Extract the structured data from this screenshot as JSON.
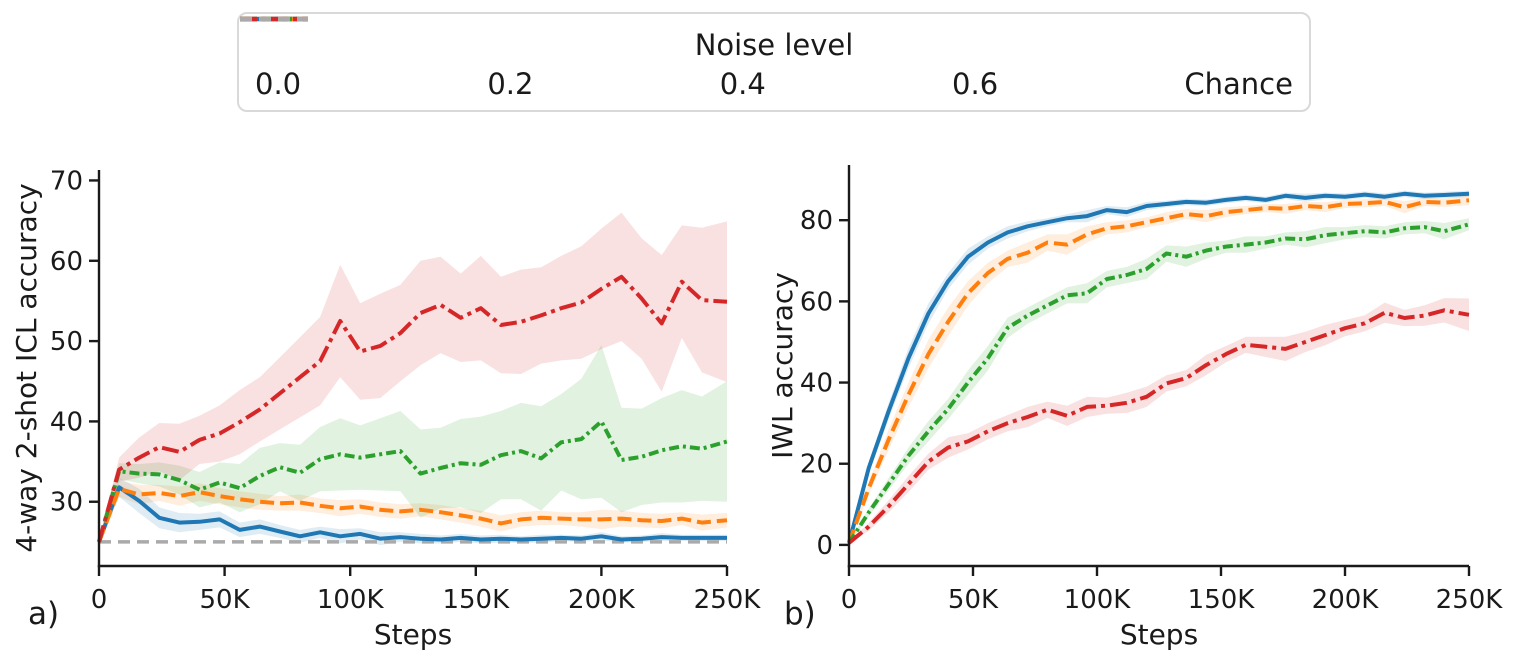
{
  "legend": {
    "title": "Noise level",
    "entries": [
      {
        "label": "0.0",
        "color": "#1f77b4",
        "linestyle": "solid"
      },
      {
        "label": "0.2",
        "color": "#ff7f0e",
        "linestyle": "dashed"
      },
      {
        "label": "0.4",
        "color": "#2ca02c",
        "linestyle": "dashdotdot"
      },
      {
        "label": "0.6",
        "color": "#d62728",
        "linestyle": "dashdot"
      },
      {
        "label": "Chance",
        "color": "#aaaaaa",
        "linestyle": "chancedash"
      }
    ]
  },
  "chart_data": [
    {
      "type": "line",
      "panel_label": "a)",
      "xlabel": "Steps",
      "ylabel": "4-way 2-shot ICL accuracy",
      "xlim": [
        0,
        250
      ],
      "ylim": [
        22.0,
        71.3
      ],
      "x_tick_labels": [
        "0",
        "50K",
        "100K",
        "150K",
        "200K",
        "250K"
      ],
      "x_tick_values": [
        0,
        50,
        100,
        150,
        200,
        250
      ],
      "y_tick_values": [
        30,
        40,
        50,
        60,
        70
      ],
      "grid": false,
      "legend_position": "top-outside",
      "chance_level": 25,
      "x": [
        0,
        8,
        16,
        24,
        32,
        40,
        48,
        56,
        64,
        72,
        80,
        88,
        96,
        104,
        112,
        120,
        128,
        136,
        144,
        152,
        160,
        168,
        176,
        184,
        192,
        200,
        208,
        216,
        224,
        232,
        240,
        250
      ],
      "series": [
        {
          "name": "0.0",
          "color": "#1f77b4",
          "linestyle": "solid",
          "values": [
            25.0,
            31.8,
            30.1,
            28.0,
            27.4,
            27.5,
            27.8,
            26.5,
            26.9,
            26.3,
            25.7,
            26.2,
            25.7,
            26.0,
            25.4,
            25.6,
            25.4,
            25.3,
            25.5,
            25.3,
            25.4,
            25.3,
            25.4,
            25.5,
            25.4,
            25.7,
            25.3,
            25.4,
            25.6,
            25.5,
            25.5,
            25.5
          ],
          "band": [
            0.3,
            1.2,
            1.5,
            1.3,
            1.2,
            1.0,
            1.0,
            0.9,
            0.9,
            0.8,
            0.8,
            0.7,
            0.9,
            0.7,
            0.8,
            0.6,
            0.6,
            0.5,
            0.5,
            0.5,
            0.5,
            0.4,
            0.5,
            0.4,
            0.4,
            0.5,
            0.4,
            0.4,
            0.5,
            0.4,
            0.4,
            0.4
          ]
        },
        {
          "name": "0.2",
          "color": "#ff7f0e",
          "linestyle": "dashed",
          "values": [
            25.0,
            31.6,
            30.9,
            31.1,
            30.7,
            31.2,
            30.7,
            30.3,
            30.0,
            29.8,
            29.9,
            29.5,
            29.2,
            29.4,
            29.0,
            28.8,
            29.0,
            28.7,
            28.3,
            27.9,
            27.3,
            27.8,
            28.0,
            27.9,
            27.8,
            27.8,
            27.9,
            27.7,
            27.6,
            27.9,
            27.4,
            27.7
          ],
          "band": [
            0.3,
            1.0,
            1.2,
            1.0,
            1.2,
            1.1,
            1.0,
            1.0,
            1.0,
            0.9,
            1.0,
            0.9,
            1.0,
            0.9,
            0.9,
            0.9,
            0.8,
            0.9,
            0.9,
            1.0,
            1.0,
            0.9,
            0.9,
            0.8,
            0.9,
            1.2,
            1.0,
            0.9,
            0.9,
            0.8,
            1.0,
            0.9
          ]
        },
        {
          "name": "0.4",
          "color": "#2ca02c",
          "linestyle": "dashdotdot",
          "values": [
            25.0,
            33.8,
            33.5,
            33.4,
            32.7,
            31.5,
            32.4,
            31.7,
            33.2,
            34.3,
            33.6,
            35.3,
            35.9,
            35.5,
            35.9,
            36.3,
            33.5,
            34.2,
            34.8,
            34.6,
            35.8,
            36.3,
            35.4,
            37.4,
            37.8,
            40.0,
            35.2,
            35.6,
            36.4,
            36.9,
            36.6,
            37.5
          ],
          "band": [
            0.3,
            1.0,
            1.2,
            1.5,
            1.8,
            2.2,
            2.5,
            3.0,
            3.5,
            3.0,
            3.5,
            4.0,
            4.5,
            4.0,
            4.5,
            5.0,
            5.5,
            5.0,
            5.5,
            6.0,
            5.5,
            6.0,
            6.5,
            6.0,
            7.5,
            9.5,
            6.5,
            6.0,
            6.5,
            7.0,
            6.5,
            7.5
          ]
        },
        {
          "name": "0.6",
          "color": "#d62728",
          "linestyle": "dashdot",
          "values": [
            25.0,
            34.0,
            35.5,
            36.8,
            36.2,
            37.7,
            38.5,
            39.9,
            41.5,
            43.5,
            45.5,
            47.5,
            52.5,
            48.7,
            49.4,
            51.0,
            53.5,
            54.5,
            52.9,
            54.1,
            52.0,
            52.4,
            53.2,
            54.1,
            54.8,
            56.5,
            58.0,
            55.3,
            52.2,
            57.4,
            55.1,
            54.9
          ],
          "band": [
            0.3,
            1.5,
            2.5,
            3.0,
            3.5,
            3.0,
            3.5,
            4.0,
            4.0,
            4.5,
            5.0,
            5.5,
            7.0,
            6.0,
            6.5,
            6.0,
            6.5,
            6.0,
            5.5,
            6.5,
            6.0,
            6.5,
            6.0,
            6.5,
            7.0,
            7.5,
            8.0,
            7.5,
            8.5,
            7.0,
            9.0,
            10.0
          ]
        }
      ]
    },
    {
      "type": "line",
      "panel_label": "b)",
      "xlabel": "Steps",
      "ylabel": "IWL accuracy",
      "xlim": [
        0,
        250
      ],
      "ylim": [
        -5.2,
        93.6
      ],
      "x_tick_labels": [
        "0",
        "50K",
        "100K",
        "150K",
        "200K",
        "250K"
      ],
      "x_tick_values": [
        0,
        50,
        100,
        150,
        200,
        250
      ],
      "y_tick_values": [
        0,
        20,
        40,
        60,
        80
      ],
      "grid": false,
      "chance_level": null,
      "x": [
        0,
        8,
        16,
        24,
        32,
        40,
        48,
        56,
        64,
        72,
        80,
        88,
        96,
        104,
        112,
        120,
        128,
        136,
        144,
        152,
        160,
        168,
        176,
        184,
        192,
        200,
        208,
        216,
        224,
        232,
        240,
        250
      ],
      "series": [
        {
          "name": "0.0",
          "color": "#1f77b4",
          "linestyle": "solid",
          "values": [
            0.5,
            19,
            33,
            46,
            57,
            65,
            71,
            74.5,
            77,
            78.5,
            79.5,
            80.5,
            81,
            82.5,
            82,
            83.5,
            84,
            84.5,
            84.3,
            85,
            85.5,
            85,
            86,
            85.5,
            86,
            85.8,
            86.3,
            85.8,
            86.5,
            86,
            86.2,
            86.5
          ],
          "band": [
            0.2,
            1.5,
            2.0,
            2.5,
            2.5,
            2.0,
            2.0,
            1.5,
            1.5,
            1.2,
            1.0,
            1.0,
            1.5,
            1.0,
            1.2,
            1.0,
            0.8,
            0.8,
            0.8,
            0.8,
            0.8,
            0.8,
            0.8,
            1.0,
            0.8,
            0.8,
            0.8,
            0.8,
            0.8,
            0.8,
            0.8,
            0.8
          ]
        },
        {
          "name": "0.2",
          "color": "#ff7f0e",
          "linestyle": "dashed",
          "values": [
            0.5,
            14,
            26,
            37,
            47,
            55,
            62,
            67,
            70.5,
            72,
            74.5,
            74,
            76.5,
            78,
            78.5,
            79.5,
            80.5,
            81.5,
            81,
            82,
            82.5,
            83,
            82.8,
            83.5,
            83.2,
            84,
            84.2,
            84.5,
            83.2,
            84.5,
            84.3,
            84.9
          ],
          "band": [
            0.2,
            1.5,
            2.5,
            3.0,
            3.5,
            3.5,
            3.0,
            2.5,
            2.0,
            2.5,
            2.0,
            2.5,
            2.0,
            1.5,
            1.5,
            1.2,
            1.5,
            1.2,
            1.5,
            1.2,
            1.0,
            1.0,
            1.2,
            1.0,
            1.2,
            1.0,
            1.0,
            1.0,
            1.5,
            1.0,
            1.0,
            1.2
          ]
        },
        {
          "name": "0.4",
          "color": "#2ca02c",
          "linestyle": "dashdotdot",
          "values": [
            0.5,
            8,
            15,
            22,
            28,
            33.5,
            40,
            46,
            53.5,
            56.5,
            59,
            61.5,
            62,
            65.5,
            66.5,
            68,
            71.8,
            71,
            72.5,
            73.5,
            74,
            74.5,
            75.5,
            75.3,
            76.3,
            76.8,
            77.3,
            77,
            78,
            78.3,
            77.3,
            79
          ],
          "band": [
            0.2,
            1.0,
            1.5,
            2.0,
            2.5,
            2.5,
            3.0,
            3.0,
            2.5,
            2.0,
            2.0,
            2.0,
            2.5,
            2.0,
            2.0,
            2.5,
            2.0,
            2.5,
            2.0,
            1.5,
            2.0,
            1.5,
            1.5,
            2.0,
            2.0,
            1.5,
            1.5,
            1.5,
            1.5,
            1.5,
            2.0,
            1.5
          ]
        },
        {
          "name": "0.6",
          "color": "#d62728",
          "linestyle": "dashdot",
          "values": [
            0.5,
            4.5,
            9.5,
            15,
            20.5,
            24,
            25.5,
            28,
            30,
            31.5,
            33.3,
            31.8,
            34,
            34.3,
            35,
            36.5,
            39.8,
            41.1,
            44.3,
            47,
            49.3,
            48.8,
            48.3,
            50,
            51.7,
            53.4,
            54.6,
            57.2,
            55.9,
            56.5,
            57.8,
            56.7
          ],
          "band": [
            0.2,
            1.0,
            1.5,
            2.0,
            2.0,
            2.5,
            2.0,
            2.0,
            2.0,
            2.5,
            2.0,
            2.5,
            2.5,
            2.0,
            2.5,
            2.5,
            2.0,
            2.0,
            2.5,
            2.0,
            2.0,
            2.5,
            3.0,
            2.5,
            2.5,
            2.0,
            2.0,
            2.5,
            2.0,
            2.5,
            3.0,
            4.0
          ]
        }
      ]
    }
  ]
}
